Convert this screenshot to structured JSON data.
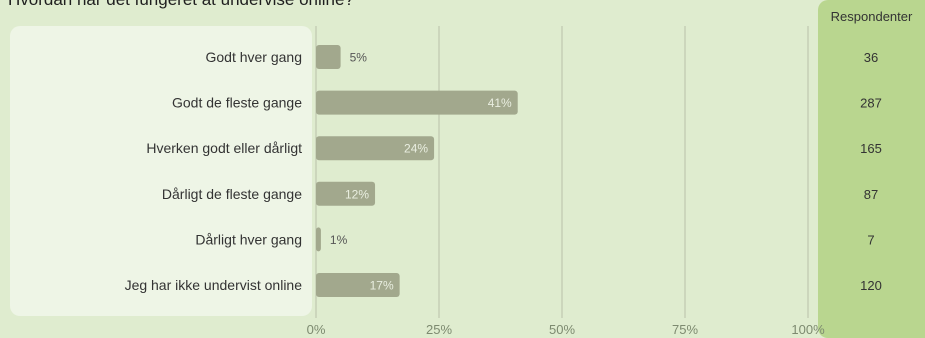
{
  "title": "Hvordan har det fungeret at undervise online?",
  "respondents_header": "Respondenter",
  "colors": {
    "bar": "#a2a88d",
    "grid": "#b9c0a9",
    "background": "#dfeccf",
    "label_panel": "#eef5e6",
    "respondents_panel": "#b9d68f"
  },
  "chart_data": {
    "type": "bar",
    "orientation": "horizontal",
    "categories": [
      "Godt hver gang",
      "Godt de fleste gange",
      "Hverken godt eller dårligt",
      "Dårligt de fleste gange",
      "Dårligt hver gang",
      "Jeg har ikke undervist online"
    ],
    "values": [
      5,
      41,
      24,
      12,
      1,
      17
    ],
    "value_labels": [
      "5%",
      "41%",
      "24%",
      "12%",
      "1%",
      "17%"
    ],
    "respondents": [
      36,
      287,
      165,
      87,
      7,
      120
    ],
    "xlim": [
      0,
      100
    ],
    "xticks": [
      0,
      25,
      50,
      75,
      100
    ],
    "xtick_labels": [
      "0%",
      "25%",
      "50%",
      "75%",
      "100%"
    ],
    "grid": true
  }
}
